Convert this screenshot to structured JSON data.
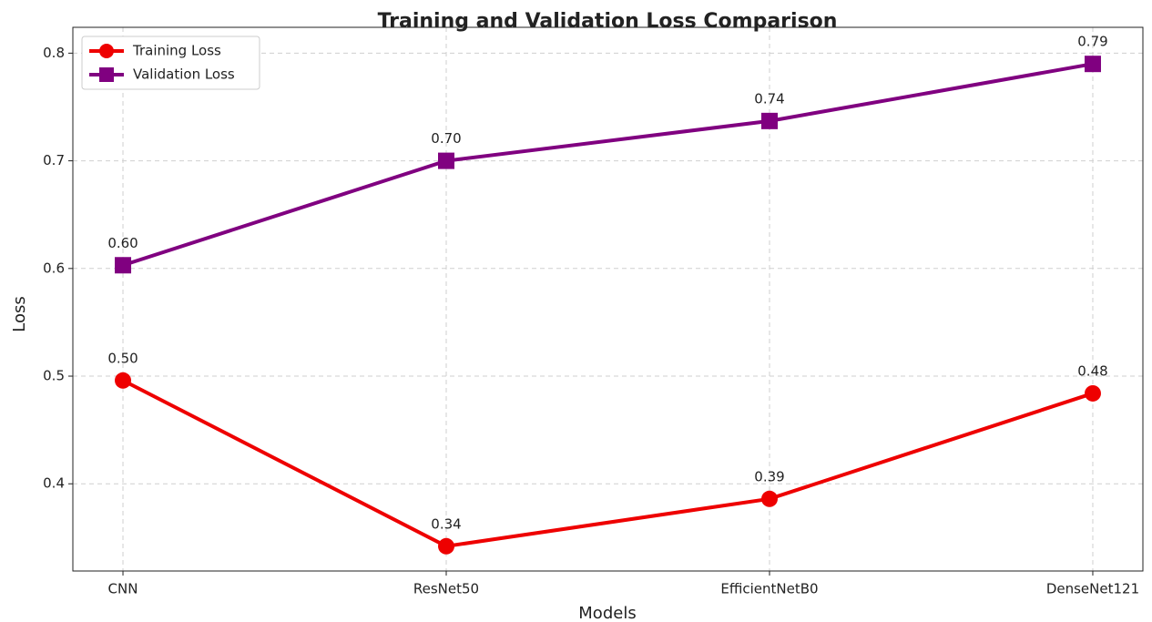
{
  "chart_data": {
    "type": "line",
    "title": "Training and Validation Loss Comparison",
    "xlabel": "Models",
    "ylabel": "Loss",
    "categories": [
      "CNN",
      "ResNet50",
      "EfficientNetB0",
      "DenseNet121"
    ],
    "series": [
      {
        "name": "Training Loss",
        "color": "#ee0000",
        "marker": "circle",
        "values": [
          0.496,
          0.342,
          0.386,
          0.484
        ],
        "value_labels": [
          "0.50",
          "0.34",
          "0.39",
          "0.48"
        ]
      },
      {
        "name": "Validation Loss",
        "color": "#800080",
        "marker": "square",
        "values": [
          0.603,
          0.7,
          0.737,
          0.79
        ],
        "value_labels": [
          "0.60",
          "0.70",
          "0.74",
          "0.79"
        ]
      }
    ],
    "ylim": [
      0.319,
      0.824
    ],
    "yticks": [
      0.4,
      0.5,
      0.6,
      0.7,
      0.8
    ],
    "grid": true,
    "legend": "upper left"
  }
}
